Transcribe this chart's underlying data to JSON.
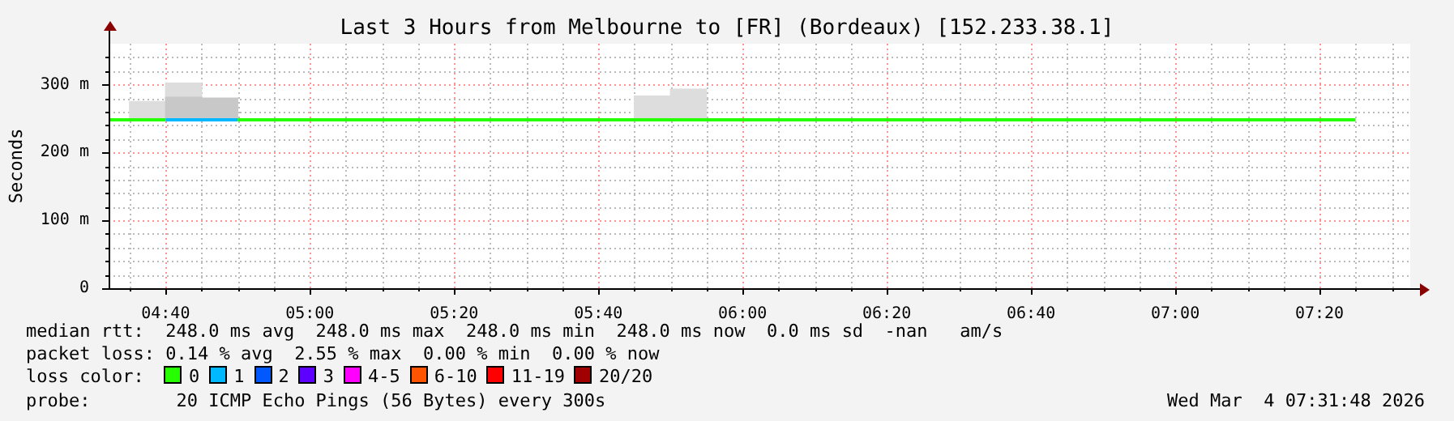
{
  "chart_data": {
    "type": "step",
    "title": "Last 3 Hours from Melbourne to [FR] (Bordeaux) [152.233.38.1]",
    "ylabel": "Seconds",
    "xlim": [
      4.535,
      7.543
    ],
    "ylim": [
      0,
      360
    ],
    "xticks": [
      {
        "value": 4.5833,
        "label": null
      },
      {
        "value": 4.6667,
        "label": "04:40"
      },
      {
        "value": 4.75,
        "label": null
      },
      {
        "value": 4.8333,
        "label": null
      },
      {
        "value": 4.9167,
        "label": null
      },
      {
        "value": 5,
        "label": "05:00"
      },
      {
        "value": 5.0833,
        "label": null
      },
      {
        "value": 5.1667,
        "label": null
      },
      {
        "value": 5.25,
        "label": null
      },
      {
        "value": 5.3333,
        "label": "05:20"
      },
      {
        "value": 5.4167,
        "label": null
      },
      {
        "value": 5.5,
        "label": null
      },
      {
        "value": 5.5833,
        "label": null
      },
      {
        "value": 5.6667,
        "label": "05:40"
      },
      {
        "value": 5.75,
        "label": null
      },
      {
        "value": 5.8333,
        "label": null
      },
      {
        "value": 5.9167,
        "label": null
      },
      {
        "value": 6,
        "label": "06:00"
      },
      {
        "value": 6.0833,
        "label": null
      },
      {
        "value": 6.1667,
        "label": null
      },
      {
        "value": 6.25,
        "label": null
      },
      {
        "value": 6.3333,
        "label": "06:20"
      },
      {
        "value": 6.4167,
        "label": null
      },
      {
        "value": 6.5,
        "label": null
      },
      {
        "value": 6.5833,
        "label": null
      },
      {
        "value": 6.6667,
        "label": "06:40"
      },
      {
        "value": 6.75,
        "label": null
      },
      {
        "value": 6.8333,
        "label": null
      },
      {
        "value": 6.9167,
        "label": null
      },
      {
        "value": 7,
        "label": "07:00"
      },
      {
        "value": 7.0833,
        "label": null
      },
      {
        "value": 7.1667,
        "label": null
      },
      {
        "value": 7.25,
        "label": null
      },
      {
        "value": 7.3333,
        "label": "07:20"
      },
      {
        "value": 7.4167,
        "label": null
      },
      {
        "value": 7.5,
        "label": null
      }
    ],
    "yticks": [
      0,
      {
        "value": 20,
        "label": null
      },
      {
        "value": 40,
        "label": null
      },
      {
        "value": 60,
        "label": null
      },
      {
        "value": 80,
        "label": null
      },
      {
        "value": 100,
        "label": "100 m"
      },
      {
        "value": 120,
        "label": null
      },
      {
        "value": 140,
        "label": null
      },
      {
        "value": 160,
        "label": null
      },
      {
        "value": 180,
        "label": null
      },
      {
        "value": 200,
        "label": "200 m"
      },
      {
        "value": 220,
        "label": null
      },
      {
        "value": 240,
        "label": null
      },
      {
        "value": 260,
        "label": null
      },
      {
        "value": 280,
        "label": null
      },
      {
        "value": 300,
        "label": "300 m"
      },
      {
        "value": 320,
        "label": null
      },
      {
        "value": 340,
        "label": null
      }
    ],
    "grid": true,
    "legend": "bottom",
    "legend_title": "loss color:",
    "series": [
      {
        "type": "bar",
        "x": [
          4.625,
          4.7083,
          4.7917,
          5.7917,
          5.875
        ],
        "base": [
          248,
          248,
          248,
          248,
          248
        ],
        "values": [
          27,
          54,
          32,
          35,
          45
        ],
        "colors": [
          "#dddddd",
          "#dddddd",
          "#c8c8c8",
          "#dddddd",
          "#dddddd"
        ]
      },
      {
        "type": "bar",
        "x": [
          4.7083
        ],
        "base": [
          248
        ],
        "values": [
          33
        ],
        "color": "#c8c8c8"
      },
      {
        "name": "0",
        "color": "#26ff00",
        "x": [
          4.535,
          4.6667,
          4.75,
          4.8333,
          7.4167
        ],
        "values": [
          248,
          248,
          null,
          248,
          248
        ]
      },
      {
        "name": "1",
        "color": "#00b8ff",
        "x": [
          4.6667,
          4.8333
        ],
        "values": [
          248,
          248
        ]
      },
      {
        "name": "2",
        "color": "#0059ff"
      },
      {
        "name": "3",
        "color": "#5e00ff"
      },
      {
        "name": "4-5",
        "color": "#ff00ff"
      },
      {
        "name": "6-10",
        "color": "#ff5500"
      },
      {
        "name": "11-19",
        "color": "#ff0000"
      },
      {
        "name": "20/20",
        "color": "#a10000"
      }
    ],
    "annotations": [
      "median rtt:  248.0 ms avg  248.0 ms max  248.0 ms min  248.0 ms now  0.0 ms sd  -nan   am/s",
      "packet loss: 0.14 % avg  2.55 % max  0.00 % min  0.00 % now",
      "probe:        20 ICMP Echo Pings (56 Bytes) every 300s",
      "Wed Mar  4 07:31:48 2026"
    ]
  }
}
